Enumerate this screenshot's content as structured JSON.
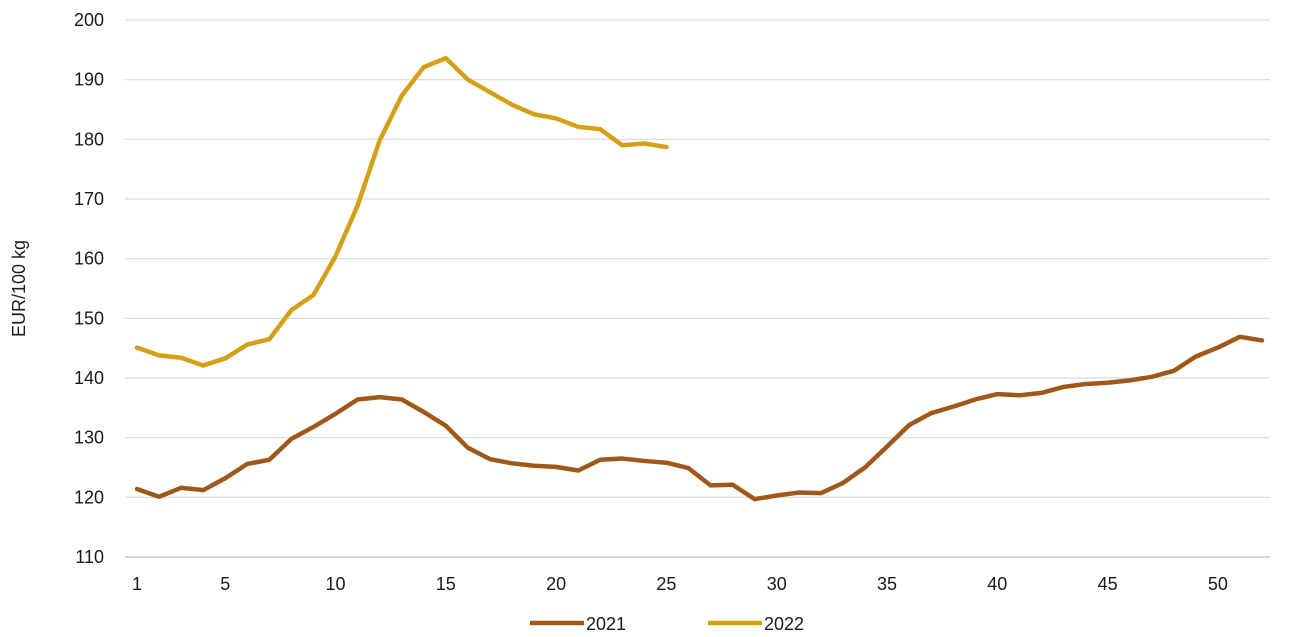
{
  "chart_data": {
    "type": "line",
    "xlabel": "",
    "ylabel": "EUR/100 kg",
    "xlim": [
      1,
      52
    ],
    "ylim": [
      110,
      200
    ],
    "x_ticks": [
      1,
      5,
      10,
      15,
      20,
      25,
      30,
      35,
      40,
      45,
      50
    ],
    "y_ticks": [
      110,
      120,
      130,
      140,
      150,
      160,
      170,
      180,
      190,
      200
    ],
    "grid": "horizontal",
    "legend_position": "bottom",
    "series": [
      {
        "name": "2021",
        "color": "#A0581A",
        "x": [
          1,
          2,
          3,
          4,
          5,
          6,
          7,
          8,
          9,
          10,
          11,
          12,
          13,
          14,
          15,
          16,
          17,
          18,
          19,
          20,
          21,
          22,
          23,
          24,
          25,
          26,
          27,
          28,
          29,
          30,
          31,
          32,
          33,
          34,
          35,
          36,
          37,
          38,
          39,
          40,
          41,
          42,
          43,
          44,
          45,
          46,
          47,
          48,
          49,
          50,
          51,
          52
        ],
        "values": [
          121.4,
          120.1,
          121.6,
          121.2,
          123.2,
          125.6,
          126.3,
          129.8,
          131.8,
          134.0,
          136.4,
          136.8,
          136.4,
          134.3,
          132.0,
          128.3,
          126.4,
          125.7,
          125.3,
          125.1,
          124.5,
          126.3,
          126.5,
          126.1,
          125.8,
          124.9,
          122.0,
          122.1,
          119.7,
          120.3,
          120.8,
          120.7,
          122.4,
          125.0,
          128.5,
          132.1,
          134.1,
          135.2,
          136.4,
          137.3,
          137.1,
          137.5,
          138.5,
          139.0,
          139.2,
          139.6,
          140.2,
          141.2,
          143.6,
          145.1,
          146.9,
          146.3
        ]
      },
      {
        "name": "2022",
        "color": "#D4A017",
        "x": [
          1,
          2,
          3,
          4,
          5,
          6,
          7,
          8,
          9,
          10,
          11,
          12,
          13,
          14,
          15,
          16,
          17,
          18,
          19,
          20,
          21,
          22,
          23,
          24,
          25
        ],
        "values": [
          145.1,
          143.8,
          143.4,
          142.1,
          143.3,
          145.6,
          146.5,
          151.4,
          153.9,
          160.4,
          168.9,
          179.8,
          187.3,
          192.1,
          193.6,
          190.0,
          187.9,
          185.8,
          184.2,
          183.5,
          182.1,
          181.7,
          179.0,
          179.3,
          178.7
        ]
      }
    ]
  }
}
